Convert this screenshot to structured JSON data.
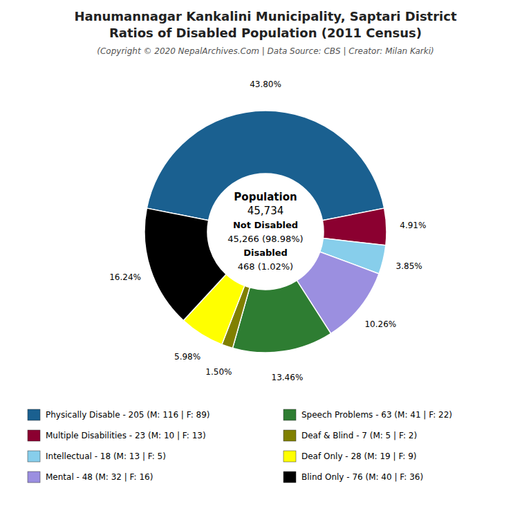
{
  "chart_data": {
    "type": "donut",
    "title": [
      "Hanumannagar Kankalini Municipality, Saptari District",
      "Ratios of Disabled Population (2011 Census)"
    ],
    "subtitle": "(Copyright © 2020 NepalArchives.Com | Data Source: CBS | Creator: Milan Karki)",
    "categories": [
      "Physically Disable - 205 (M: 116 | F: 89)",
      "Multiple Disabilities - 23 (M: 10 | F: 13)",
      "Intellectual - 18 (M: 13 | F: 5)",
      "Mental - 48 (M: 32 | F: 16)",
      "Speech Problems - 63 (M: 41 | F: 22)",
      "Deaf & Blind - 7 (M: 5 | F: 2)",
      "Deaf Only - 28 (M: 19 | F: 9)",
      "Blind Only - 76 (M: 40 | F: 36)"
    ],
    "values": [
      43.8,
      4.91,
      3.85,
      10.26,
      13.46,
      1.5,
      5.98,
      16.24
    ],
    "value_labels": [
      "43.80%",
      "4.91%",
      "3.85%",
      "10.26%",
      "13.46%",
      "1.50%",
      "5.98%",
      "16.24%"
    ],
    "colors": [
      "#1a6090",
      "#8b0030",
      "#87ceeb",
      "#9b8fe0",
      "#2e7d32",
      "#808000",
      "#ffff00",
      "#000000"
    ],
    "data_labels": true,
    "annotations": [
      "Population",
      "45,734",
      "Not Disabled",
      "45,266 (98.98%)",
      "Disabled",
      "468 (1.02%)"
    ]
  }
}
